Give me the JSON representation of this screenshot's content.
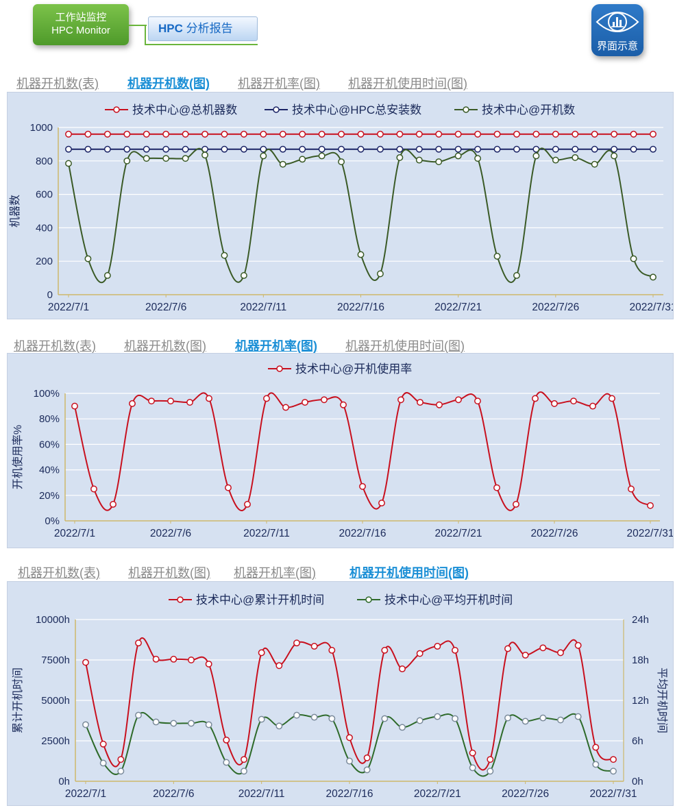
{
  "header": {
    "logo_line1": "工作站监控",
    "logo_line2": "HPC Monitor",
    "report_prefix": "HPC",
    "report_suffix": " 分析报告",
    "ui_button": "界面示意",
    "ui_icon": "eye-chart-icon"
  },
  "tabs": [
    {
      "items": [
        "机器开机数(表)",
        "机器开机数(图)",
        "机器开机率(图)",
        "机器开机使用时间(图)"
      ],
      "active": 1
    },
    {
      "items": [
        "机器开机数(表)",
        "机器开机数(图)",
        "机器开机率(图)",
        "机器开机使用时间(图)"
      ],
      "active": 2
    },
    {
      "items": [
        "机器开机数(表)",
        "机器开机数(图)",
        "机器开机率(图)",
        "机器开机使用时间(图)"
      ],
      "active": 3
    }
  ],
  "chart_data": [
    {
      "type": "line",
      "legend_position": "top",
      "ylabel": "机器数",
      "ylim": [
        0,
        1000
      ],
      "yticks": [
        "0",
        "200",
        "400",
        "600",
        "800",
        "1000"
      ],
      "xtick_labels": [
        "2022/7/1",
        "2022/7/6",
        "2022/7/11",
        "2022/7/16",
        "2022/7/21",
        "2022/7/26",
        "2022/7/31"
      ],
      "grid": true,
      "series": [
        {
          "name": "技术中心@总机器数",
          "color": "#c8101e",
          "values": [
            960,
            960,
            960,
            960,
            960,
            960,
            960,
            960,
            960,
            960,
            960,
            960,
            960,
            960,
            960,
            960,
            960,
            960,
            960,
            960,
            960,
            960,
            960,
            960,
            960,
            960,
            960,
            960,
            960,
            960,
            960
          ]
        },
        {
          "name": "技术中心@HPC总安装数",
          "color": "#1b2466",
          "values": [
            870,
            870,
            870,
            870,
            870,
            870,
            870,
            870,
            870,
            870,
            870,
            870,
            870,
            870,
            870,
            870,
            870,
            870,
            870,
            870,
            870,
            870,
            870,
            870,
            870,
            870,
            870,
            870,
            870,
            870,
            870
          ]
        },
        {
          "name": "技术中心@开机数",
          "color": "#3a5a26",
          "values": [
            785,
            215,
            115,
            800,
            815,
            815,
            815,
            835,
            235,
            115,
            830,
            780,
            810,
            830,
            795,
            240,
            125,
            820,
            805,
            795,
            830,
            815,
            230,
            115,
            830,
            805,
            820,
            780,
            830,
            215,
            105
          ]
        }
      ]
    },
    {
      "type": "line",
      "legend_position": "top",
      "ylabel": "开机使用率%",
      "ylim": [
        0,
        100
      ],
      "yticks": [
        "0%",
        "20%",
        "40%",
        "60%",
        "80%",
        "100%"
      ],
      "xtick_labels": [
        "2022/7/1",
        "2022/7/6",
        "2022/7/11",
        "2022/7/16",
        "2022/7/21",
        "2022/7/26",
        "2022/7/31"
      ],
      "grid": true,
      "series": [
        {
          "name": "技术中心@开机使用率",
          "color": "#c8101e",
          "values": [
            90,
            25,
            13,
            92,
            94,
            94,
            93,
            96,
            26,
            13,
            96,
            89,
            93,
            95,
            91,
            27,
            14,
            95,
            93,
            91,
            95,
            94,
            26,
            13,
            96,
            92,
            94,
            90,
            96,
            25,
            12
          ]
        }
      ]
    },
    {
      "type": "line",
      "legend_position": "top",
      "ylabel": "累计开机时间",
      "y2label": "平均开机时间",
      "ylim": [
        0,
        10000
      ],
      "y2lim": [
        0,
        24
      ],
      "yticks": [
        "0h",
        "2500h",
        "5000h",
        "7500h",
        "10000h"
      ],
      "y2ticks": [
        "0h",
        "6h",
        "12h",
        "18h",
        "24h"
      ],
      "xtick_labels": [
        "2022/7/1",
        "2022/7/6",
        "2022/7/11",
        "2022/7/16",
        "2022/7/21",
        "2022/7/26",
        "2022/7/31"
      ],
      "grid": true,
      "series": [
        {
          "name": "技术中心@累计开机时间",
          "color": "#c8101e",
          "axis": "left",
          "values": [
            7350,
            2300,
            1350,
            8550,
            7550,
            7550,
            7500,
            7250,
            2550,
            1350,
            7950,
            7150,
            8550,
            8350,
            8100,
            2700,
            1450,
            8100,
            6950,
            7900,
            8350,
            8100,
            1750,
            1350,
            8200,
            7800,
            8250,
            7950,
            8400,
            2100,
            1350
          ]
        },
        {
          "name": "技术中心@平均开机时间",
          "color": "#2e6a2a",
          "axis": "right",
          "values": [
            8.4,
            2.7,
            1.5,
            9.8,
            8.8,
            8.6,
            8.6,
            8.4,
            2.8,
            1.5,
            9.2,
            8.2,
            9.8,
            9.5,
            9.3,
            3.0,
            1.7,
            9.3,
            8.0,
            9.0,
            9.6,
            9.3,
            2.0,
            1.5,
            9.4,
            8.9,
            9.4,
            9.1,
            9.6,
            2.5,
            1.5
          ]
        }
      ]
    }
  ]
}
